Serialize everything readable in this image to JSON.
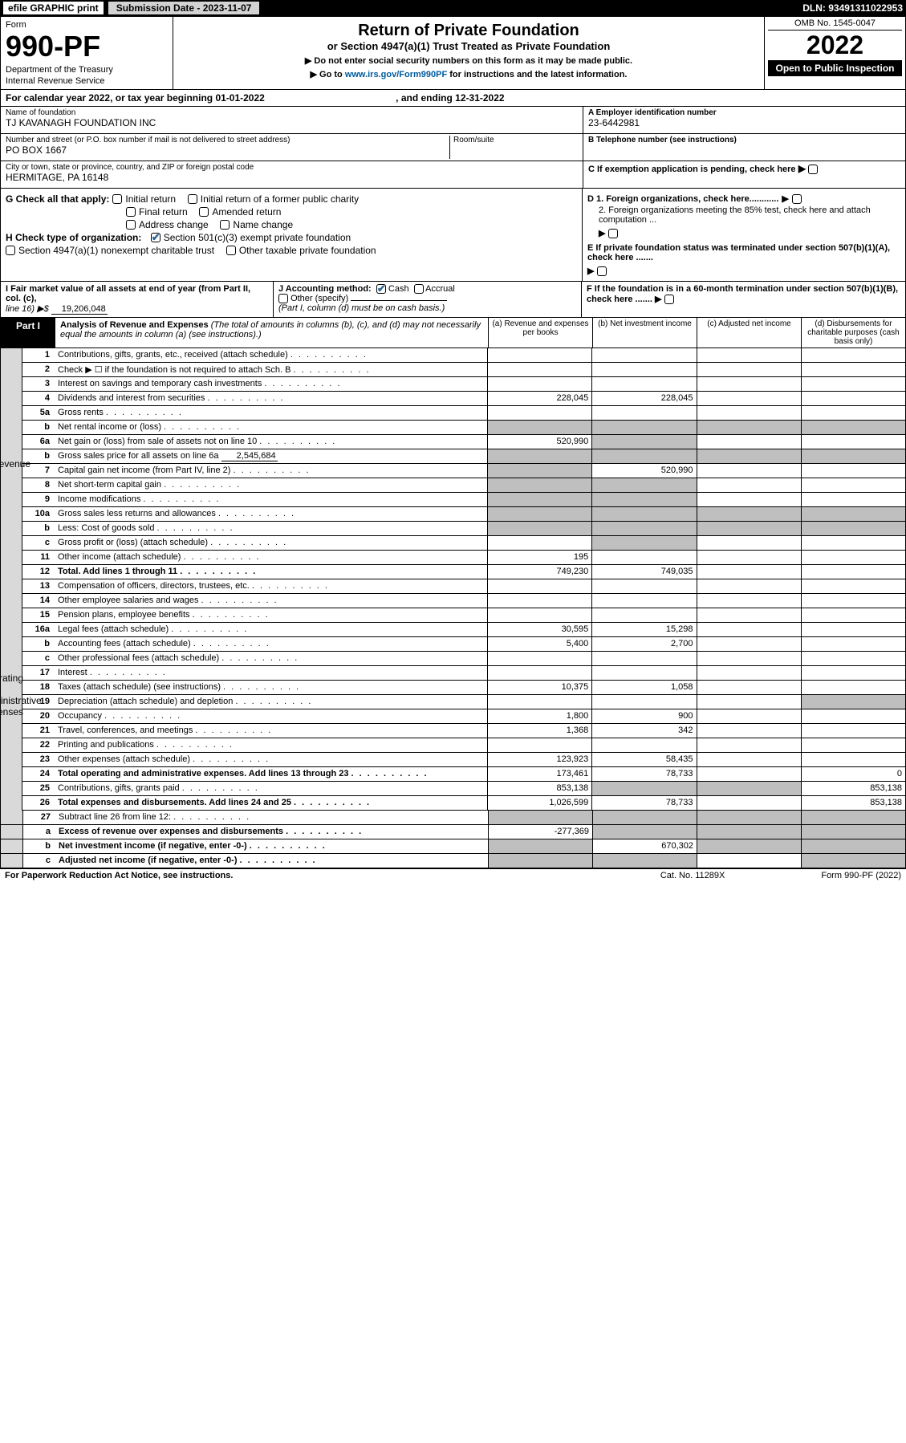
{
  "top": {
    "efile": "efile GRAPHIC print",
    "sub": "Submission Date - 2023-11-07",
    "dln": "DLN: 93491311022953"
  },
  "hdr": {
    "form": "Form",
    "num": "990-PF",
    "dept": "Department of the Treasury",
    "irs": "Internal Revenue Service",
    "title": "Return of Private Foundation",
    "sub1": "or Section 4947(a)(1) Trust Treated as Private Foundation",
    "note1": "▶ Do not enter social security numbers on this form as it may be made public.",
    "note2": "▶ Go to ",
    "link": "www.irs.gov/Form990PF",
    "note3": " for instructions and the latest information.",
    "omb": "OMB No. 1545-0047",
    "year": "2022",
    "open": "Open to Public Inspection"
  },
  "cal": {
    "a": "For calendar year 2022, or tax year beginning 01-01-2022",
    "b": ", and ending 12-31-2022"
  },
  "info": {
    "nameL": "Name of foundation",
    "name": "TJ KAVANAGH FOUNDATION INC",
    "addrL": "Number and street (or P.O. box number if mail is not delivered to street address)",
    "addr": "PO BOX 1667",
    "roomL": "Room/suite",
    "cityL": "City or town, state or province, country, and ZIP or foreign postal code",
    "city": "HERMITAGE, PA 16148",
    "einL": "A Employer identification number",
    "ein": "23-6442981",
    "telL": "B Telephone number (see instructions)",
    "tel": "",
    "cL": "C If exemption application is pending, check here",
    "d1": "D 1. Foreign organizations, check here............",
    "d2": "2. Foreign organizations meeting the 85% test, check here and attach computation ...",
    "e": "E If private foundation status was terminated under section 507(b)(1)(A), check here .......",
    "f": "F  If the foundation is in a 60-month termination under section 507(b)(1)(B), check here ......."
  },
  "g": {
    "label": "G Check all that apply:",
    "i": "Initial return",
    "ifr": "Initial return of a former public charity",
    "fr": "Final return",
    "ar": "Amended return",
    "ac": "Address change",
    "nc": "Name change"
  },
  "h": {
    "label": "H Check type of organization:",
    "s501": "Section 501(c)(3) exempt private foundation",
    "s4947": "Section 4947(a)(1) nonexempt charitable trust",
    "other": "Other taxable private foundation"
  },
  "i": {
    "label": "I Fair market value of all assets at end of year (from Part II, col. (c),",
    "line16": "line 16) ▶$",
    "val": "19,206,048"
  },
  "j": {
    "label": "J Accounting method:",
    "cash": "Cash",
    "acc": "Accrual",
    "other": "Other (specify)",
    "note": "(Part I, column (d) must be on cash basis.)"
  },
  "part1": {
    "label": "Part I",
    "title": "Analysis of Revenue and Expenses",
    "note": "(The total of amounts in columns (b), (c), and (d) may not necessarily equal the amounts in column (a) (see instructions).)"
  },
  "cols": {
    "a": "(a)   Revenue and expenses per books",
    "b": "(b)   Net investment income",
    "c": "(c)   Adjusted net income",
    "d": "(d)  Disbursements for charitable purposes (cash basis only)"
  },
  "rows": [
    {
      "n": "1",
      "d": "Contributions, gifts, grants, etc., received (attach schedule)"
    },
    {
      "n": "2",
      "d": "Check ▶ ☐ if the foundation is not required to attach Sch. B"
    },
    {
      "n": "3",
      "d": "Interest on savings and temporary cash investments"
    },
    {
      "n": "4",
      "d": "Dividends and interest from securities",
      "a": "228,045",
      "b": "228,045"
    },
    {
      "n": "5a",
      "d": "Gross rents"
    },
    {
      "n": "b",
      "d": "Net rental income or (loss)",
      "gb": true,
      "gc": true,
      "gd": true,
      "ga": true
    },
    {
      "n": "6a",
      "d": "Net gain or (loss) from sale of assets not on line 10",
      "a": "520,990",
      "gb": true
    },
    {
      "n": "b",
      "d": "Gross sales price for all assets on line 6a",
      "inline": "2,545,684",
      "ga": true,
      "gb": true,
      "gc": true,
      "gd": true
    },
    {
      "n": "7",
      "d": "Capital gain net income (from Part IV, line 2)",
      "b": "520,990",
      "ga": true
    },
    {
      "n": "8",
      "d": "Net short-term capital gain",
      "ga": true,
      "gb": true
    },
    {
      "n": "9",
      "d": "Income modifications",
      "ga": true,
      "gb": true
    },
    {
      "n": "10a",
      "d": "Gross sales less returns and allowances",
      "ga": true,
      "gb": true,
      "gc": true,
      "gd": true
    },
    {
      "n": "b",
      "d": "Less: Cost of goods sold",
      "ga": true,
      "gb": true,
      "gc": true,
      "gd": true
    },
    {
      "n": "c",
      "d": "Gross profit or (loss) (attach schedule)",
      "gb": true
    },
    {
      "n": "11",
      "d": "Other income (attach schedule)",
      "a": "195"
    },
    {
      "n": "12",
      "d": "Total. Add lines 1 through 11",
      "a": "749,230",
      "b": "749,035",
      "bold": true
    }
  ],
  "exp": [
    {
      "n": "13",
      "d": "Compensation of officers, directors, trustees, etc."
    },
    {
      "n": "14",
      "d": "Other employee salaries and wages"
    },
    {
      "n": "15",
      "d": "Pension plans, employee benefits"
    },
    {
      "n": "16a",
      "d": "Legal fees (attach schedule)",
      "a": "30,595",
      "b": "15,298"
    },
    {
      "n": "b",
      "d": "Accounting fees (attach schedule)",
      "a": "5,400",
      "b": "2,700"
    },
    {
      "n": "c",
      "d": "Other professional fees (attach schedule)"
    },
    {
      "n": "17",
      "d": "Interest"
    },
    {
      "n": "18",
      "d": "Taxes (attach schedule) (see instructions)",
      "a": "10,375",
      "b": "1,058"
    },
    {
      "n": "19",
      "d": "Depreciation (attach schedule) and depletion",
      "gd": true
    },
    {
      "n": "20",
      "d": "Occupancy",
      "a": "1,800",
      "b": "900"
    },
    {
      "n": "21",
      "d": "Travel, conferences, and meetings",
      "a": "1,368",
      "b": "342"
    },
    {
      "n": "22",
      "d": "Printing and publications"
    },
    {
      "n": "23",
      "d": "Other expenses (attach schedule)",
      "a": "123,923",
      "b": "58,435"
    },
    {
      "n": "24",
      "d": "Total operating and administrative expenses. Add lines 13 through 23",
      "a": "173,461",
      "b": "78,733",
      "dd": "0",
      "bold": true
    },
    {
      "n": "25",
      "d": "Contributions, gifts, grants paid",
      "a": "853,138",
      "dd": "853,138",
      "gb": true,
      "gc": true
    },
    {
      "n": "26",
      "d": "Total expenses and disbursements. Add lines 24 and 25",
      "a": "1,026,599",
      "b": "78,733",
      "dd": "853,138",
      "bold": true
    }
  ],
  "net": [
    {
      "n": "27",
      "d": "Subtract line 26 from line 12:",
      "ga": true,
      "gb": true,
      "gc": true,
      "gd": true
    },
    {
      "n": "a",
      "d": "Excess of revenue over expenses and disbursements",
      "a": "-277,369",
      "gb": true,
      "gc": true,
      "gd": true,
      "bold": true
    },
    {
      "n": "b",
      "d": "Net investment income (if negative, enter -0-)",
      "b": "670,302",
      "ga": true,
      "gc": true,
      "gd": true,
      "bold": true
    },
    {
      "n": "c",
      "d": "Adjusted net income (if negative, enter -0-)",
      "ga": true,
      "gb": true,
      "gd": true,
      "bold": true
    }
  ],
  "side": {
    "rev": "Revenue",
    "exp": "Operating and Administrative Expenses"
  },
  "foot": {
    "l": "For Paperwork Reduction Act Notice, see instructions.",
    "m": "Cat. No. 11289X",
    "r": "Form 990-PF (2022)"
  }
}
